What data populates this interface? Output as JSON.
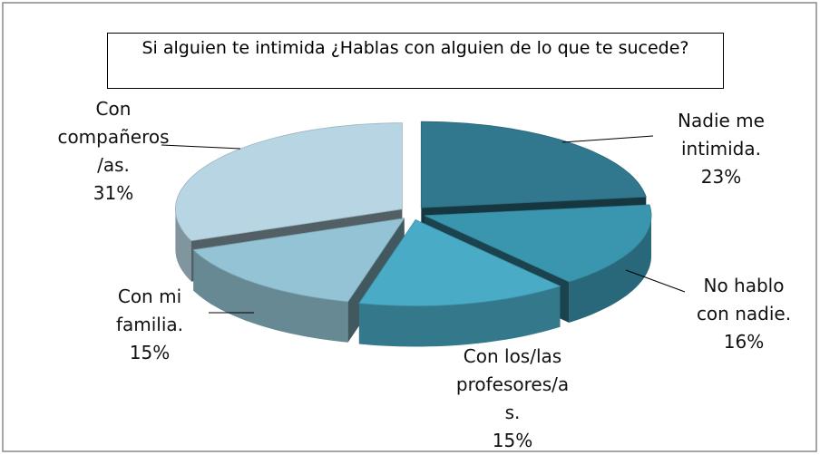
{
  "chart_data": {
    "type": "pie3d",
    "title": "Si alguien te intimida ¿Hablas con alguien de lo que te sucede?",
    "categories": [
      "Nadie me\nintimida.",
      "No hablo\ncon nadie.",
      "Con los/las\nprofesores/a\ns.",
      "Con mi\nfamilia.",
      "Con\ncompañeros\n/as."
    ],
    "values": [
      23,
      16,
      15,
      15,
      31
    ],
    "value_labels": [
      "23%",
      "16%",
      "15%",
      "15%",
      "31%"
    ],
    "colors": [
      "#31788f",
      "#3a95ae",
      "#4aabc6",
      "#93c3d4",
      "#b7d5e2"
    ]
  }
}
